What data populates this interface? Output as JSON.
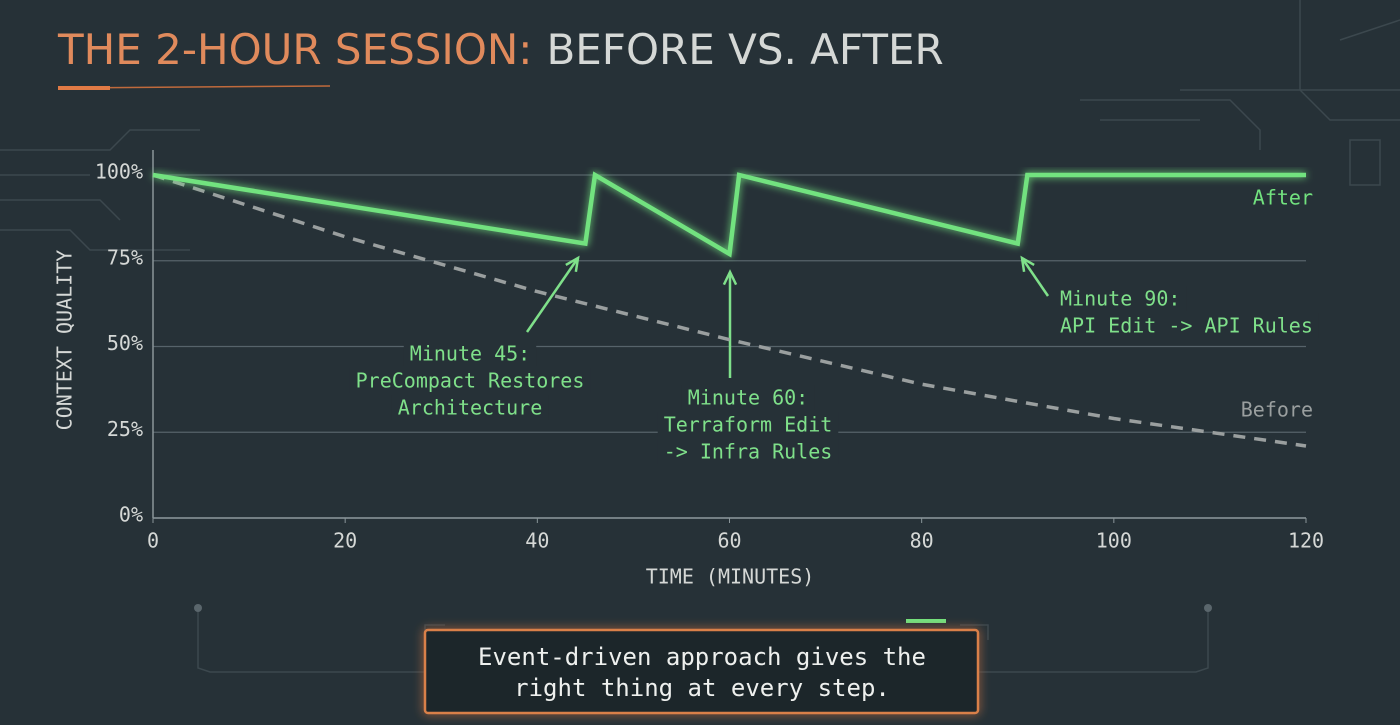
{
  "chart_data": {
    "type": "line",
    "title": [
      "THE 2-HOUR SESSION:",
      "BEFORE VS. AFTER"
    ],
    "x_label": "TIME (MINUTES)",
    "y_label": "CONTEXT QUALITY",
    "xlim": [
      0,
      120
    ],
    "xticks": [
      0,
      20,
      40,
      60,
      80,
      100,
      120
    ],
    "ylim": [
      0,
      100
    ],
    "yticks": [
      {
        "value": 0,
        "label": "0%"
      },
      {
        "value": 25,
        "label": "25%"
      },
      {
        "value": 50,
        "label": "50%"
      },
      {
        "value": 75,
        "label": "75%"
      },
      {
        "value": 100,
        "label": "100%"
      }
    ],
    "grid": true,
    "series": [
      {
        "name": "After",
        "color": "#72e27f",
        "dashed": false,
        "x": [
          0,
          45,
          46,
          60,
          61,
          90,
          91,
          120
        ],
        "values": [
          100,
          80,
          100,
          77,
          100,
          80,
          100,
          100
        ]
      },
      {
        "name": "Before",
        "color": "#9a9f9f",
        "dashed": true,
        "x": [
          0,
          20,
          40,
          60,
          80,
          100,
          120
        ],
        "values": [
          100,
          82,
          66,
          52,
          39,
          29,
          21
        ]
      }
    ],
    "annotations": [
      {
        "lines": [
          "Minute 45:",
          "PreCompact Restores",
          "Architecture"
        ]
      },
      {
        "lines": [
          "Minute 60:",
          "Terraform Edit",
          "-> Infra Rules"
        ]
      },
      {
        "lines": [
          "Minute 90:",
          "API Edit -> API Rules"
        ]
      }
    ],
    "footer_note": [
      "Event-driven approach gives the",
      "right thing at every step."
    ]
  }
}
